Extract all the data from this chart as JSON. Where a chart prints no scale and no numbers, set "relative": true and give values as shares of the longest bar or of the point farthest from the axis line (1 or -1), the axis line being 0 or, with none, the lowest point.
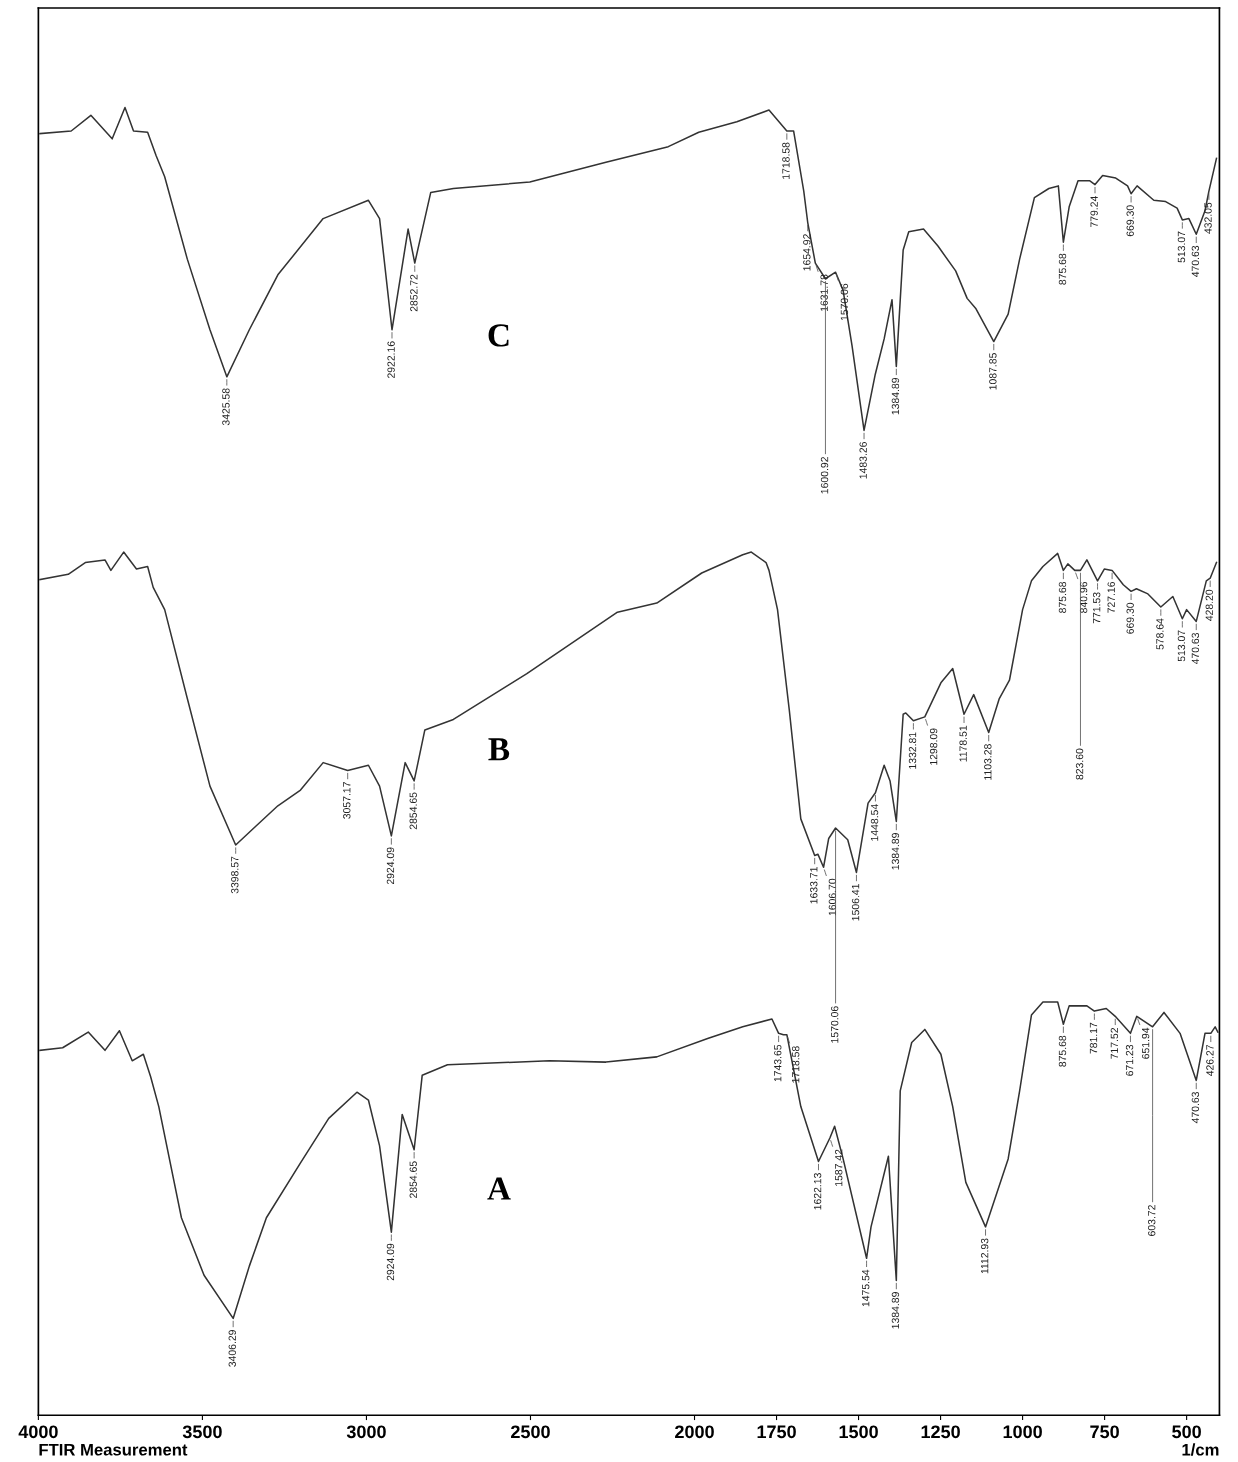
{
  "chart_data": {
    "type": "line",
    "relative": true,
    "xlabel": "1/cm",
    "xlim": [
      4000,
      400
    ],
    "xticks": [
      4000,
      3500,
      3000,
      2500,
      2000,
      1750,
      1500,
      1250,
      1000,
      750,
      500
    ],
    "annotations": [
      "FTIR Measurement",
      {
        "text": "3425.58",
        "x": 3425.58,
        "y": 0.794
      },
      {
        "text": "2922.16",
        "x": 2922.16,
        "y": 0.83
      },
      {
        "text": "2852.72",
        "x": 2852.72,
        "y": 0.881
      },
      {
        "text": "1718.58",
        "x": 1718.58,
        "y": 0.982
      },
      {
        "text": "1654.92",
        "x": 1654.92,
        "y": 0.912
      },
      {
        "text": "1631.78",
        "x": 1631.78,
        "y": 0.881
      },
      {
        "text": "1600.92",
        "x": 1600.92,
        "y": 0.869
      },
      {
        "text": "1570.06",
        "x": 1570.06,
        "y": 0.874
      },
      {
        "text": "1483.26",
        "x": 1483.26,
        "y": 0.753
      },
      {
        "text": "1384.89",
        "x": 1384.89,
        "y": 0.802
      },
      {
        "text": "1087.85",
        "x": 1087.85,
        "y": 0.821
      },
      {
        "text": "875.68",
        "x": 875.68,
        "y": 0.897
      },
      {
        "text": "779.24",
        "x": 779.24,
        "y": 0.941
      },
      {
        "text": "669.30",
        "x": 669.3,
        "y": 0.934
      },
      {
        "text": "513.07",
        "x": 513.07,
        "y": 0.914
      },
      {
        "text": "470.63",
        "x": 470.63,
        "y": 0.903
      },
      {
        "text": "432.05",
        "x": 432.05,
        "y": 0.936
      },
      {
        "text": "3398.57",
        "x": 3398.57,
        "y": 0.436
      },
      {
        "text": "3057.17",
        "x": 3057.17,
        "y": 0.493
      },
      {
        "text": "2924.09",
        "x": 2924.09,
        "y": 0.443
      },
      {
        "text": "2854.65",
        "x": 2854.65,
        "y": 0.485
      },
      {
        "text": "1633.71",
        "x": 1633.71,
        "y": 0.428
      },
      {
        "text": "1606.70",
        "x": 1606.7,
        "y": 0.419
      },
      {
        "text": "1570.06",
        "x": 1570.06,
        "y": 0.449
      },
      {
        "text": "1506.41",
        "x": 1506.41,
        "y": 0.415
      },
      {
        "text": "1448.54",
        "x": 1448.54,
        "y": 0.476
      },
      {
        "text": "1384.89",
        "x": 1384.89,
        "y": 0.454
      },
      {
        "text": "1332.81",
        "x": 1332.81,
        "y": 0.531
      },
      {
        "text": "1298.09",
        "x": 1298.09,
        "y": 0.534
      },
      {
        "text": "1178.51",
        "x": 1178.51,
        "y": 0.536
      },
      {
        "text": "1103.28",
        "x": 1103.28,
        "y": 0.522
      },
      {
        "text": "875.68",
        "x": 875.68,
        "y": 0.646
      },
      {
        "text": "840.96",
        "x": 840.96,
        "y": 0.646
      },
      {
        "text": "823.60",
        "x": 823.6,
        "y": 0.646
      },
      {
        "text": "771.53",
        "x": 771.53,
        "y": 0.638
      },
      {
        "text": "727.16",
        "x": 727.16,
        "y": 0.646
      },
      {
        "text": "669.30",
        "x": 669.3,
        "y": 0.63
      },
      {
        "text": "578.64",
        "x": 578.64,
        "y": 0.618
      },
      {
        "text": "513.07",
        "x": 513.07,
        "y": 0.609
      },
      {
        "text": "470.63",
        "x": 470.63,
        "y": 0.607
      },
      {
        "text": "428.20",
        "x": 428.2,
        "y": 0.64
      },
      {
        "text": "3406.29",
        "x": 3406.29,
        "y": 0.074
      },
      {
        "text": "2924.09",
        "x": 2924.09,
        "y": 0.14
      },
      {
        "text": "2854.65",
        "x": 2854.65,
        "y": 0.203
      },
      {
        "text": "1743.65",
        "x": 1743.65,
        "y": 0.292
      },
      {
        "text": "1718.58",
        "x": 1718.58,
        "y": 0.291
      },
      {
        "text": "1622.13",
        "x": 1622.13,
        "y": 0.194
      },
      {
        "text": "1587.42",
        "x": 1587.42,
        "y": 0.212
      },
      {
        "text": "1475.54",
        "x": 1475.54,
        "y": 0.12
      },
      {
        "text": "1384.89",
        "x": 1384.89,
        "y": 0.103
      },
      {
        "text": "1112.93",
        "x": 1112.93,
        "y": 0.144
      },
      {
        "text": "875.68",
        "x": 875.68,
        "y": 0.299
      },
      {
        "text": "781.17",
        "x": 781.17,
        "y": 0.309
      },
      {
        "text": "717.52",
        "x": 717.52,
        "y": 0.305
      },
      {
        "text": "671.23",
        "x": 671.23,
        "y": 0.292
      },
      {
        "text": "651.94",
        "x": 651.94,
        "y": 0.305
      },
      {
        "text": "603.72",
        "x": 603.72,
        "y": 0.297
      },
      {
        "text": "470.63",
        "x": 470.63,
        "y": 0.256
      },
      {
        "text": "426.27",
        "x": 426.27,
        "y": 0.292
      }
    ],
    "series": [
      {
        "name": "C",
        "color": "#333333",
        "x": [
          3995,
          3900,
          3840,
          3775,
          3736,
          3710,
          3667,
          3641,
          3615,
          3546,
          3477,
          3425.58,
          3357,
          3270,
          3132,
          2994,
          2960,
          2922.16,
          2873,
          2852.72,
          2804,
          2735,
          2502,
          2270,
          2080,
          1987,
          1871,
          1773,
          1718.58,
          1698,
          1667,
          1654.92,
          1631.78,
          1600.92,
          1570.06,
          1547,
          1520,
          1483.26,
          1449,
          1422,
          1398,
          1384.89,
          1364,
          1347,
          1302,
          1258,
          1204,
          1169,
          1142,
          1087.85,
          1044,
          1009,
          964,
          920,
          891,
          875.68,
          858,
          831,
          796,
          779.24,
          756,
          716,
          680,
          669.3,
          651,
          600,
          564,
          529,
          513.07,
          493,
          470.63,
          444,
          432.05,
          409
        ],
        "values": [
          0.98,
          0.982,
          0.994,
          0.976,
          1.0,
          0.982,
          0.981,
          0.963,
          0.947,
          0.884,
          0.83,
          0.794,
          0.83,
          0.872,
          0.915,
          0.929,
          0.915,
          0.83,
          0.907,
          0.881,
          0.935,
          0.938,
          0.943,
          0.958,
          0.97,
          0.981,
          0.989,
          0.998,
          0.982,
          0.982,
          0.936,
          0.912,
          0.881,
          0.869,
          0.874,
          0.86,
          0.818,
          0.753,
          0.796,
          0.823,
          0.853,
          0.802,
          0.891,
          0.905,
          0.907,
          0.894,
          0.875,
          0.854,
          0.846,
          0.821,
          0.842,
          0.884,
          0.931,
          0.938,
          0.94,
          0.897,
          0.924,
          0.944,
          0.944,
          0.941,
          0.948,
          0.946,
          0.94,
          0.934,
          0.94,
          0.929,
          0.928,
          0.923,
          0.914,
          0.915,
          0.903,
          0.921,
          0.936,
          0.961
        ]
      },
      {
        "name": "B",
        "color": "#343434",
        "x": [
          3995,
          3909,
          3857,
          3797,
          3779,
          3740,
          3701,
          3667,
          3650,
          3615,
          3546,
          3477,
          3398.57,
          3339,
          3270,
          3201,
          3132,
          3057.17,
          2994,
          2960,
          2924.09,
          2882,
          2854.65,
          2822,
          2735,
          2511,
          2235,
          2115,
          1978,
          1853,
          1827,
          1782,
          1773,
          1747,
          1711,
          1676,
          1633.71,
          1624,
          1606.7,
          1591,
          1570.06,
          1533,
          1506.41,
          1471,
          1448.54,
          1422,
          1404,
          1384.89,
          1364,
          1356,
          1332.81,
          1298.09,
          1249,
          1213,
          1178.51,
          1149,
          1103.28,
          1071,
          1040,
          1000,
          973,
          938,
          893,
          875.68,
          862,
          840.96,
          823.6,
          804,
          771.53,
          751,
          727.16,
          693,
          669.3,
          653,
          618,
          578.64,
          542,
          513.07,
          500,
          470.63,
          440,
          428.2,
          409
        ],
        "values": [
          0.639,
          0.643,
          0.652,
          0.654,
          0.646,
          0.66,
          0.647,
          0.649,
          0.633,
          0.616,
          0.548,
          0.481,
          0.436,
          0.45,
          0.466,
          0.478,
          0.499,
          0.493,
          0.497,
          0.481,
          0.443,
          0.499,
          0.485,
          0.524,
          0.532,
          0.567,
          0.614,
          0.621,
          0.644,
          0.658,
          0.66,
          0.652,
          0.646,
          0.616,
          0.539,
          0.456,
          0.428,
          0.429,
          0.419,
          0.441,
          0.449,
          0.44,
          0.415,
          0.468,
          0.476,
          0.497,
          0.485,
          0.454,
          0.536,
          0.537,
          0.531,
          0.534,
          0.56,
          0.571,
          0.536,
          0.551,
          0.522,
          0.548,
          0.562,
          0.616,
          0.638,
          0.649,
          0.659,
          0.646,
          0.651,
          0.646,
          0.646,
          0.654,
          0.638,
          0.647,
          0.646,
          0.635,
          0.63,
          0.632,
          0.628,
          0.618,
          0.626,
          0.609,
          0.616,
          0.607,
          0.638,
          0.64,
          0.652
        ]
      },
      {
        "name": "A",
        "color": "#323232",
        "x": [
          3995,
          3926,
          3848,
          3797,
          3753,
          3714,
          3680,
          3658,
          3633,
          3564,
          3495,
          3406.29,
          3357,
          3305,
          3201,
          3115,
          3029,
          2994,
          2960,
          2924.09,
          2891,
          2854.65,
          2830,
          2753,
          2442,
          2270,
          2115,
          1960,
          1853,
          1764,
          1743.65,
          1729,
          1718.58,
          1676,
          1622.13,
          1587.42,
          1573,
          1547,
          1475.54,
          1462,
          1409,
          1384.89,
          1373,
          1338,
          1298,
          1249,
          1213,
          1173,
          1112.93,
          1044,
          1009,
          973,
          938,
          893,
          875.68,
          858,
          804,
          781.17,
          745,
          717.52,
          671.23,
          651.94,
          603.72,
          569,
          520,
          470.63,
          444,
          426.27,
          413,
          405
        ],
        "values": [
          0.279,
          0.281,
          0.293,
          0.279,
          0.294,
          0.271,
          0.276,
          0.259,
          0.236,
          0.151,
          0.107,
          0.074,
          0.114,
          0.151,
          0.193,
          0.227,
          0.247,
          0.241,
          0.206,
          0.14,
          0.23,
          0.203,
          0.26,
          0.268,
          0.271,
          0.27,
          0.274,
          0.288,
          0.297,
          0.303,
          0.292,
          0.291,
          0.291,
          0.236,
          0.194,
          0.212,
          0.221,
          0.196,
          0.12,
          0.144,
          0.198,
          0.103,
          0.248,
          0.285,
          0.295,
          0.276,
          0.236,
          0.178,
          0.144,
          0.196,
          0.248,
          0.306,
          0.316,
          0.316,
          0.299,
          0.313,
          0.313,
          0.309,
          0.311,
          0.305,
          0.292,
          0.305,
          0.297,
          0.308,
          0.292,
          0.256,
          0.292,
          0.292,
          0.297,
          0.293
        ]
      }
    ]
  }
}
